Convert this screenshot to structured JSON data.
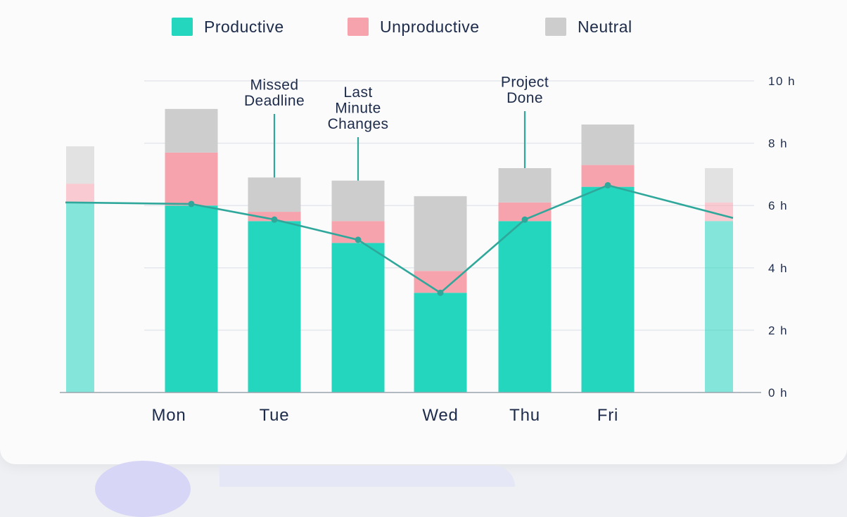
{
  "chart_data": {
    "type": "bar",
    "stacked": true,
    "categories": [
      "",
      "Mon",
      "Tue",
      "",
      "Wed",
      "Thu",
      "Fri",
      ""
    ],
    "series": [
      {
        "name": "Productive",
        "values": [
          6.1,
          6.0,
          5.5,
          4.8,
          3.2,
          5.5,
          6.6,
          5.5
        ]
      },
      {
        "name": "Unproductive",
        "values": [
          0.6,
          1.7,
          0.3,
          0.7,
          0.7,
          0.6,
          0.7,
          0.6
        ]
      },
      {
        "name": "Neutral",
        "values": [
          1.2,
          1.4,
          1.1,
          1.3,
          2.4,
          1.1,
          1.3,
          1.1
        ]
      }
    ],
    "line": {
      "values": [
        6.1,
        6.05,
        5.55,
        4.9,
        3.2,
        5.55,
        6.65,
        5.6
      ]
    },
    "faded_edge_bars": [
      0,
      7
    ],
    "annotations": [
      {
        "category_index": 2,
        "lines": [
          "Missed",
          "Deadline"
        ]
      },
      {
        "category_index": 3,
        "lines": [
          "Last",
          "Minute",
          "Changes"
        ]
      },
      {
        "category_index": 5,
        "lines": [
          "Project",
          "Done"
        ]
      }
    ],
    "ylim": [
      0,
      10
    ],
    "yticks": [
      "0 h",
      "2 h",
      "4 h",
      "6 h",
      "8 h",
      "10 h"
    ],
    "ytick_values": [
      0,
      2,
      4,
      6,
      8,
      10
    ],
    "y_axis_side": "right",
    "legend_position": "top-center",
    "grid": true,
    "colors": {
      "Productive": "#23d6bd",
      "Unproductive": "#f7a3ad",
      "Neutral": "#cdcdcd",
      "line": "#2fa89b",
      "grid": "#e4e7ec"
    }
  }
}
